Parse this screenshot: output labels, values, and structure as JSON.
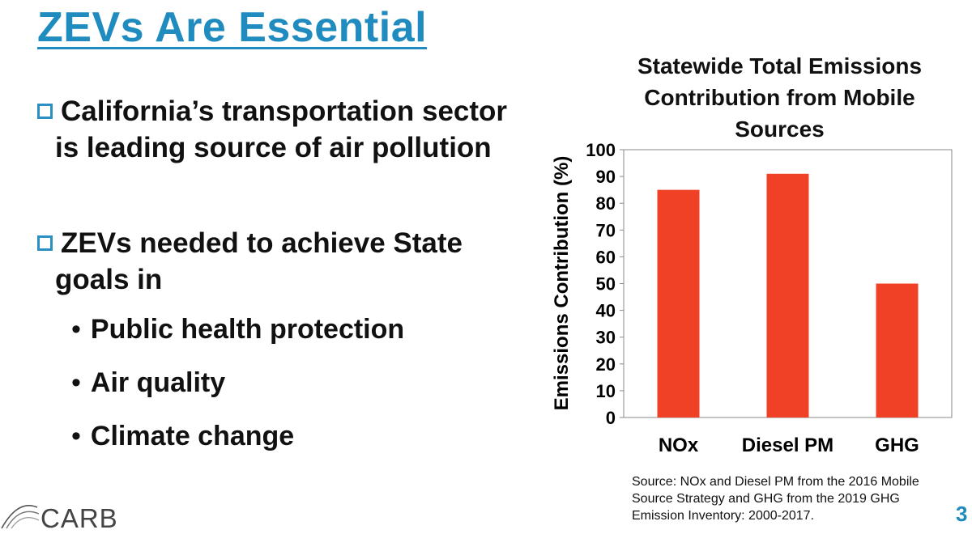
{
  "slide": {
    "title": "ZEVs Are Essential",
    "bullets": [
      {
        "line1": "California’s transportation sector",
        "line2": "is leading source of air pollution"
      },
      {
        "line1": "ZEVs needed to achieve State",
        "line2": "goals in"
      }
    ],
    "sub_bullets": [
      "Public health protection",
      "Air quality",
      "Climate change"
    ],
    "source_lines": [
      "Source: NOx and Diesel PM from the 2016 Mobile",
      "Source Strategy and GHG from the 2019 GHG",
      "Emission Inventory: 2000-2017."
    ],
    "logo_text": "CARB",
    "page_number": "3"
  },
  "colors": {
    "title": "#1f8bbf",
    "checkbox": "#2b8fc4",
    "bar": "#f04126"
  },
  "chart_data": {
    "type": "bar",
    "title_lines": [
      "Statewide Total Emissions",
      "Contribution from Mobile",
      "Sources"
    ],
    "categories": [
      "NOx",
      "Diesel PM",
      "GHG"
    ],
    "values": [
      85,
      91,
      50
    ],
    "ylabel": "Emissions Contribution (%)",
    "xlabel": "",
    "ylim": [
      0,
      100
    ],
    "yticks": [
      0,
      10,
      20,
      30,
      40,
      50,
      60,
      70,
      80,
      90,
      100
    ],
    "grid": false,
    "legend": "none"
  }
}
